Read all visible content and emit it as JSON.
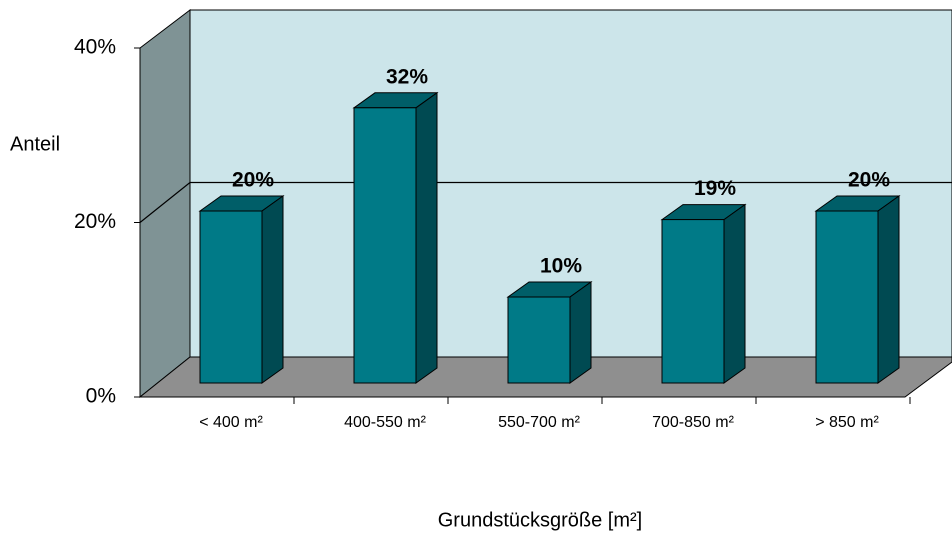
{
  "chart_data": {
    "type": "bar3d",
    "y_axis_label": "Anteil",
    "x_axis_label": "Grundstücksgröße [m²]",
    "categories": [
      "< 400 m²",
      "400-550 m²",
      "550-700 m²",
      "700-850 m²",
      "> 850 m²"
    ],
    "values": [
      20,
      32,
      10,
      19,
      20
    ],
    "value_labels": [
      "20%",
      "32%",
      "10%",
      "19%",
      "20%"
    ],
    "color": "#007a87",
    "ylim": [
      0,
      40
    ],
    "yticks": [
      {
        "value": 0,
        "label": "0%"
      },
      {
        "value": 20,
        "label": "20%"
      },
      {
        "value": 40,
        "label": "40%"
      }
    ],
    "grid": true
  }
}
